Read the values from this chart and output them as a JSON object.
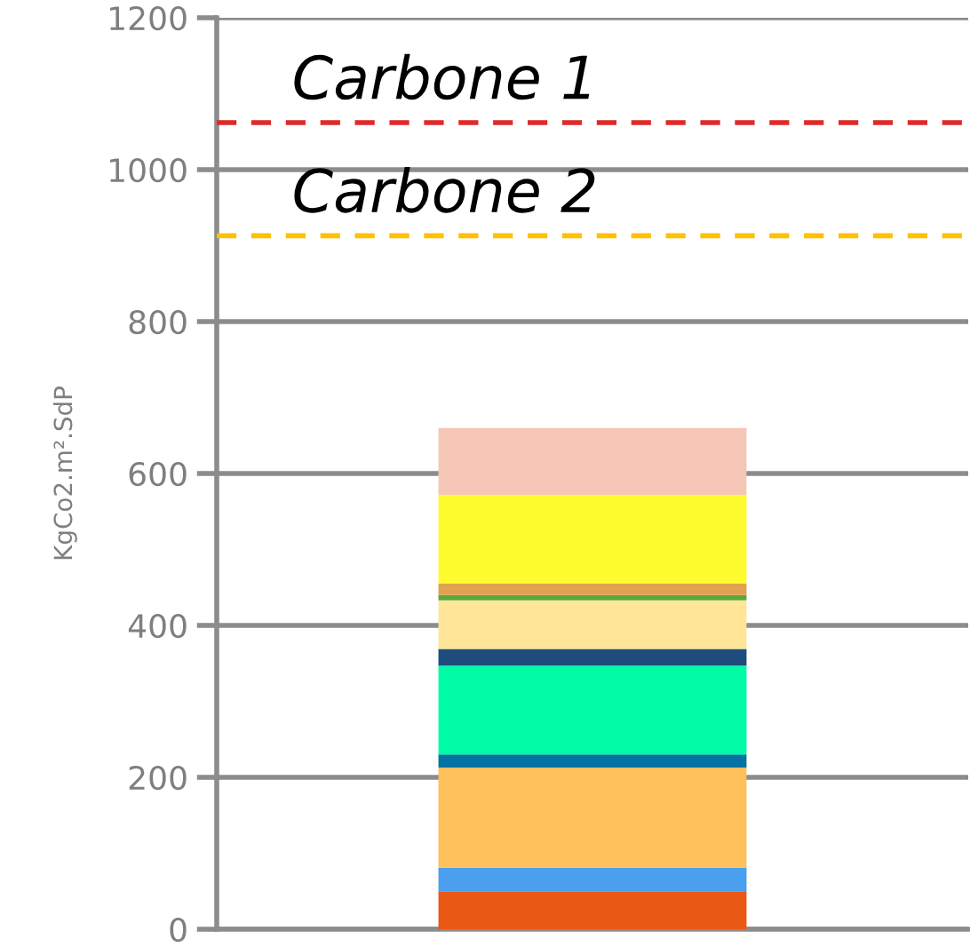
{
  "chart_data": {
    "type": "bar",
    "stacked": true,
    "categories": [
      null
    ],
    "ylabel": "KgCo2.m².SdP",
    "ylim": [
      0,
      1200
    ],
    "yticks": [
      0,
      200,
      400,
      600,
      800,
      1000,
      1200
    ],
    "grid": "y",
    "tick_labels": "y",
    "legend": false,
    "series": [
      {
        "color": "#ea5815",
        "values": [
          50
        ]
      },
      {
        "color": "#4a9fee",
        "values": [
          31
        ]
      },
      {
        "color": "#fec05a",
        "values": [
          132
        ]
      },
      {
        "color": "#0373a3",
        "values": [
          17
        ]
      },
      {
        "color": "#00fba6",
        "values": [
          117
        ]
      },
      {
        "color": "#1e4c7c",
        "values": [
          22
        ]
      },
      {
        "color": "#fee597",
        "values": [
          64
        ]
      },
      {
        "color": "#5aa83a",
        "values": [
          7
        ]
      },
      {
        "color": "#e0a24e",
        "values": [
          15
        ]
      },
      {
        "color": "#fefc2e",
        "values": [
          117
        ]
      },
      {
        "color": "#f5c6b6",
        "values": [
          88
        ]
      }
    ],
    "ref_lines": [
      {
        "axis": "y",
        "value": 1062,
        "label": "Carbone 1",
        "color": "#e02a2a",
        "line_style": "dashed"
      },
      {
        "axis": "y",
        "value": 913,
        "label": "Carbone 2",
        "color": "#ffc000",
        "line_style": "dashed"
      }
    ]
  }
}
